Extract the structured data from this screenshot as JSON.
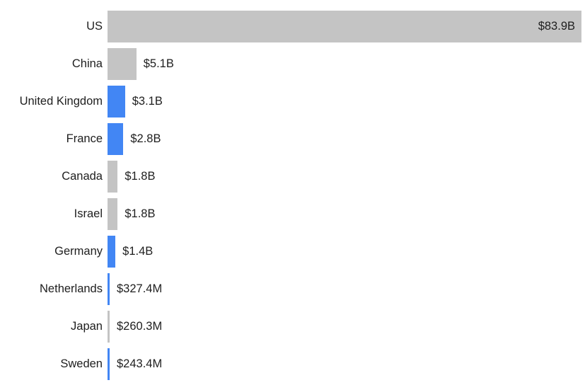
{
  "chart_data": {
    "type": "bar",
    "orientation": "horizontal",
    "title": "",
    "xlabel": "",
    "ylabel": "",
    "grid": false,
    "legend_position": "none",
    "xlim": [
      0,
      83.9
    ],
    "categories": [
      "US",
      "China",
      "United Kingdom",
      "France",
      "Canada",
      "Israel",
      "Germany",
      "Netherlands",
      "Japan",
      "Sweden"
    ],
    "values_usd_billions": [
      83.9,
      5.1,
      3.1,
      2.8,
      1.8,
      1.8,
      1.4,
      0.3274,
      0.2603,
      0.2434
    ],
    "value_labels": [
      "$83.9B",
      "$5.1B",
      "$3.1B",
      "$2.8B",
      "$1.8B",
      "$1.8B",
      "$1.4B",
      "$327.4M",
      "$260.3M",
      "$243.4M"
    ],
    "bar_color_keys": [
      "gray",
      "gray",
      "blue",
      "blue",
      "gray",
      "gray",
      "blue",
      "blue",
      "gray",
      "blue"
    ]
  },
  "colors": {
    "gray": "#c4c4c4",
    "blue": "#4286f4",
    "text": "#1e1e1e",
    "background": "#ffffff"
  }
}
